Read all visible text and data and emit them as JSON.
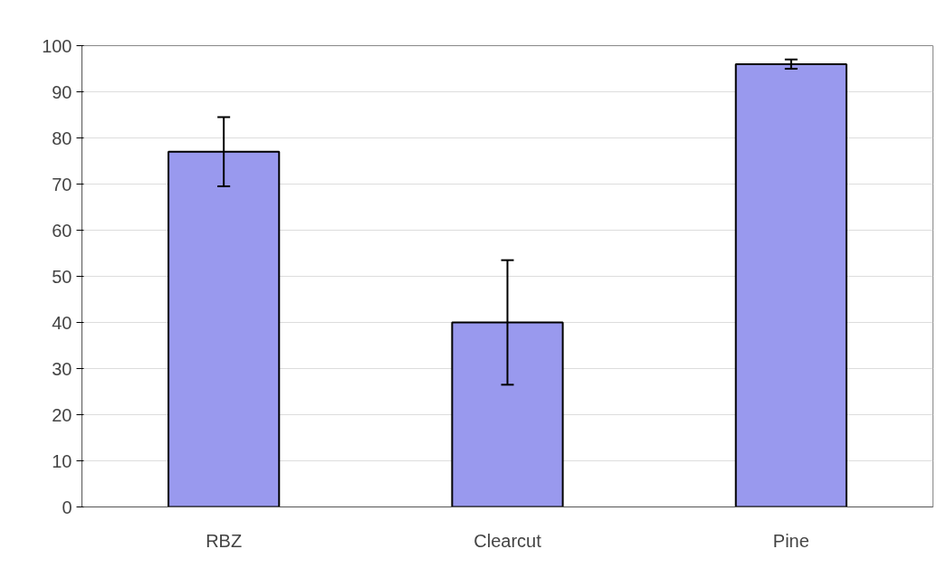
{
  "chart_data": {
    "type": "bar",
    "categories": [
      "RBZ",
      "Clearcut",
      "Pine"
    ],
    "values": [
      77,
      40,
      96
    ],
    "errors": [
      [
        69.5,
        84.5
      ],
      [
        26.5,
        53.5
      ],
      [
        95,
        97
      ]
    ],
    "color": "#9999ee",
    "ylim": [
      0,
      100
    ],
    "yticks": [
      0,
      10,
      20,
      30,
      40,
      50,
      60,
      70,
      80,
      90,
      100
    ],
    "grid": "y"
  }
}
